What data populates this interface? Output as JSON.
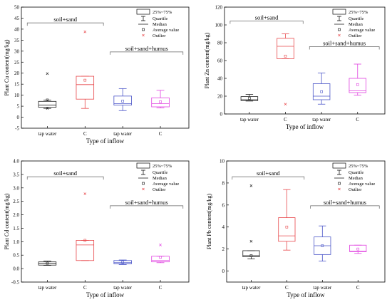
{
  "chart_data": [
    {
      "type": "box",
      "id": "cu",
      "ylabel": "Plant Cu content(mg/kg)",
      "xlabel": "Type of inflow",
      "ylim": [
        -5,
        50
      ],
      "yticks": [
        -5,
        0,
        5,
        10,
        15,
        20,
        25,
        30,
        35,
        40,
        45,
        50
      ],
      "categories": [
        "tap water",
        "C",
        "tap water",
        "C"
      ],
      "group_labels": [
        "soil+sand",
        "soil+sand+humus"
      ],
      "legend": [
        "25%~75%",
        "Quartile",
        "Median",
        "Average value",
        "Outlier"
      ],
      "colors": [
        "#222222",
        "#e8474a",
        "#4a55c8",
        "#e040e0"
      ],
      "boxes": [
        {
          "min": 4,
          "q1": 4.5,
          "median": 5.5,
          "q3": 7.2,
          "max": 7.8,
          "mean": 7.8,
          "outliers": [
            19.8,
            4.0
          ]
        },
        {
          "min": 4,
          "q1": 8.2,
          "median": 14.8,
          "q3": 18.6,
          "max": 18.6,
          "mean": 16.8,
          "outliers": [
            38.8
          ]
        },
        {
          "min": 3,
          "q1": 5.5,
          "median": 6.2,
          "q3": 9.6,
          "max": 13,
          "mean": 7.3,
          "outliers": []
        },
        {
          "min": 4.2,
          "q1": 4.7,
          "median": 6.2,
          "q3": 8.8,
          "max": 12.2,
          "mean": 7.0,
          "outliers": []
        }
      ]
    },
    {
      "type": "box",
      "id": "zn",
      "ylabel": "Plant Zn content(mg/kg)",
      "xlabel": "Type of inflow",
      "ylim": [
        0,
        120
      ],
      "yticks": [
        0,
        20,
        40,
        60,
        80,
        100,
        120
      ],
      "categories": [
        "tap water",
        "C",
        "tap water",
        "C"
      ],
      "group_labels": [
        "soil+sand",
        "soil+sand+humus"
      ],
      "legend": [
        "25%~75%",
        "Quartile",
        "Median",
        "Average value",
        "Outlier"
      ],
      "colors": [
        "#222222",
        "#e8474a",
        "#4a55c8",
        "#e040e0"
      ],
      "boxes": [
        {
          "min": 14.5,
          "q1": 15,
          "median": 16,
          "q3": 19.5,
          "max": 22,
          "mean": 17.6,
          "outliers": []
        },
        {
          "min": 62,
          "q1": 62,
          "median": 76,
          "q3": 85,
          "max": 90,
          "mean": 65,
          "outliers": [
            11
          ]
        },
        {
          "min": 11,
          "q1": 16,
          "median": 20,
          "q3": 34,
          "max": 46,
          "mean": 25,
          "outliers": []
        },
        {
          "min": 21,
          "q1": 24,
          "median": 26,
          "q3": 40,
          "max": 56,
          "mean": 33,
          "outliers": []
        }
      ]
    },
    {
      "type": "box",
      "id": "cd",
      "ylabel": "Plant Cd content(mg/kg)",
      "xlabel": "Type of inflow",
      "ylim": [
        -0.5,
        4.0
      ],
      "yticks": [
        -0.5,
        0.0,
        0.5,
        1.0,
        1.5,
        2.0,
        2.5,
        3.0,
        3.5,
        4.0
      ],
      "tick_labels": [
        "-0.5",
        "0.0",
        "0.5",
        "1.0",
        "1.5",
        "2.0",
        "2.5",
        "3.0",
        "3.5",
        "4.0"
      ],
      "categories": [
        "tap water",
        "C",
        "tap water",
        "C"
      ],
      "group_labels": [
        "soil+sand",
        "soil+sand+humus"
      ],
      "legend": [
        "25%~75%",
        "Quartile",
        "Median",
        "Average value",
        "Outlier"
      ],
      "colors": [
        "#222222",
        "#e8474a",
        "#4a55c8",
        "#e040e0"
      ],
      "boxes": [
        {
          "min": 0.12,
          "q1": 0.13,
          "median": 0.2,
          "q3": 0.25,
          "max": 0.28,
          "mean": 0.2,
          "outliers": []
        },
        {
          "min": 0.3,
          "q1": 0.3,
          "median": 0.88,
          "q3": 1.05,
          "max": 1.05,
          "mean": 1.05,
          "outliers": [
            2.78
          ]
        },
        {
          "min": 0.15,
          "q1": 0.18,
          "median": 0.22,
          "q3": 0.3,
          "max": 0.32,
          "mean": 0.24,
          "outliers": []
        },
        {
          "min": 0.22,
          "q1": 0.25,
          "median": 0.3,
          "q3": 0.46,
          "max": 0.46,
          "mean": 0.42,
          "outliers": [
            0.88
          ]
        }
      ]
    },
    {
      "type": "box",
      "id": "pb",
      "ylabel": "Plant Pb content(mg/kg)",
      "xlabel": "Type of inflow",
      "ylim": [
        -1,
        10
      ],
      "yticks": [
        0,
        2,
        4,
        6,
        8,
        10
      ],
      "categories": [
        "tap water",
        "C",
        "tap water",
        "C"
      ],
      "group_labels": [
        "soil+sand",
        "soil+sand+humus"
      ],
      "legend": [
        "25%~75%",
        "Quartile",
        "Median",
        "Average value",
        "Outlier"
      ],
      "colors": [
        "#222222",
        "#e8474a",
        "#4a55c8",
        "#e040e0"
      ],
      "boxes": [
        {
          "min": 1.1,
          "q1": 1.3,
          "median": 1.4,
          "q3": 1.85,
          "max": 1.85,
          "mean": 1.4,
          "outliers": [
            7.75,
            2.7
          ]
        },
        {
          "min": 1.9,
          "q1": 2.7,
          "median": 3.2,
          "q3": 4.85,
          "max": 7.4,
          "mean": 4.0,
          "outliers": []
        },
        {
          "min": 0.9,
          "q1": 1.5,
          "median": 2.3,
          "q3": 3.1,
          "max": 4.1,
          "mean": 2.3,
          "outliers": []
        },
        {
          "min": 1.6,
          "q1": 1.75,
          "median": 1.8,
          "q3": 2.35,
          "max": 2.35,
          "mean": 2.0,
          "outliers": []
        }
      ]
    }
  ]
}
